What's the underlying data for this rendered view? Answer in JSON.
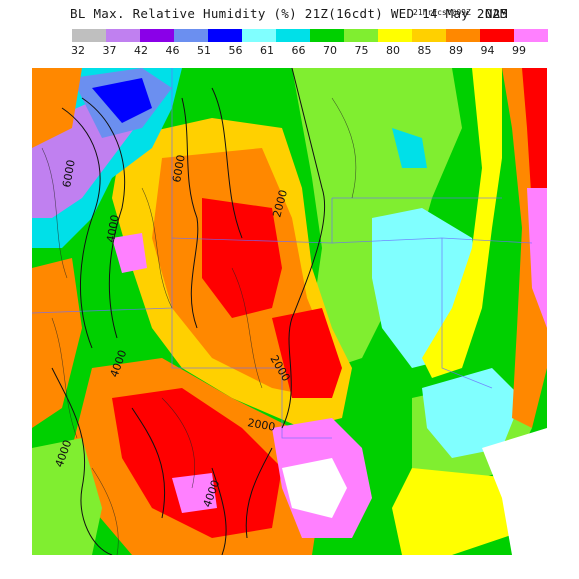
{
  "header": {
    "title": "BL Max. Relative Humidity (%) 21Z(16cdt) WED 14 May 2025",
    "subtitle": "21hrFcst@09Z",
    "model": "NAM"
  },
  "legend": {
    "ticks": [
      "32",
      "37",
      "42",
      "46",
      "51",
      "56",
      "61",
      "66",
      "70",
      "75",
      "80",
      "85",
      "89",
      "94",
      "99"
    ],
    "colors": [
      "#bfbfbf",
      "#c080f0",
      "#8a00e8",
      "#6b8ff0",
      "#0000ff",
      "#80ffff",
      "#00e0e8",
      "#00d000",
      "#80ee30",
      "#ffff00",
      "#ffd000",
      "#ff8800",
      "#ff0000",
      "#ff80ff"
    ]
  },
  "map": {
    "contour_labels": [
      "6000",
      "6000",
      "4000",
      "2000",
      "2000",
      "2000",
      "4000",
      "4000",
      "4000"
    ]
  }
}
